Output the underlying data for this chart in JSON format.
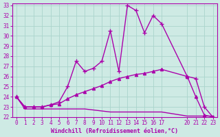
{
  "background_color": "#ceeae4",
  "grid_color": "#aad4cc",
  "line_color": "#aa00aa",
  "title": "Windchill (Refroidissement éolien,°C)",
  "xlim": [
    -0.5,
    23.5
  ],
  "ylim": [
    22,
    33.2
  ],
  "xticks": [
    0,
    1,
    2,
    3,
    4,
    5,
    6,
    7,
    8,
    9,
    10,
    11,
    12,
    13,
    14,
    15,
    16,
    17,
    20,
    21,
    22,
    23
  ],
  "yticks": [
    22,
    23,
    24,
    25,
    26,
    27,
    28,
    29,
    30,
    31,
    32,
    33
  ],
  "series": [
    {
      "x": [
        0,
        1,
        2,
        3,
        4,
        5,
        6,
        7,
        8,
        9,
        10,
        11,
        12,
        13,
        14,
        15,
        16,
        17,
        20,
        21,
        22,
        23
      ],
      "y": [
        24,
        22.8,
        22.8,
        22.8,
        22.8,
        22.8,
        22.8,
        22.8,
        22.8,
        22.7,
        22.6,
        22.5,
        22.5,
        22.5,
        22.5,
        22.5,
        22.5,
        22.5,
        22.1,
        22.1,
        22.1,
        22.1
      ],
      "marker": "None",
      "lw": 1.0,
      "ms": 0
    },
    {
      "x": [
        0,
        1,
        2,
        3,
        4,
        5,
        6,
        7,
        8,
        9,
        10,
        11,
        12,
        13,
        14,
        15,
        16,
        17,
        20,
        21,
        22,
        23
      ],
      "y": [
        24,
        23,
        23,
        23,
        23.2,
        23.3,
        23.8,
        24.2,
        24.5,
        24.8,
        25.1,
        25.5,
        25.8,
        26.0,
        26.2,
        26.3,
        26.5,
        26.7,
        26.0,
        24.0,
        22.2,
        22.0
      ],
      "marker": "^",
      "lw": 1.0,
      "ms": 3
    },
    {
      "x": [
        0,
        1,
        2,
        3,
        4,
        5,
        6,
        7,
        8,
        9,
        10,
        11,
        12,
        13,
        14,
        15,
        16,
        17,
        20,
        21,
        22,
        23
      ],
      "y": [
        24,
        23,
        23,
        23,
        23.2,
        23.5,
        25.0,
        27.5,
        26.5,
        26.8,
        27.5,
        30.5,
        26.5,
        33.0,
        32.5,
        30.3,
        32.0,
        31.2,
        26.0,
        25.8,
        23.0,
        22.0
      ],
      "marker": "+",
      "lw": 1.0,
      "ms": 4
    }
  ]
}
